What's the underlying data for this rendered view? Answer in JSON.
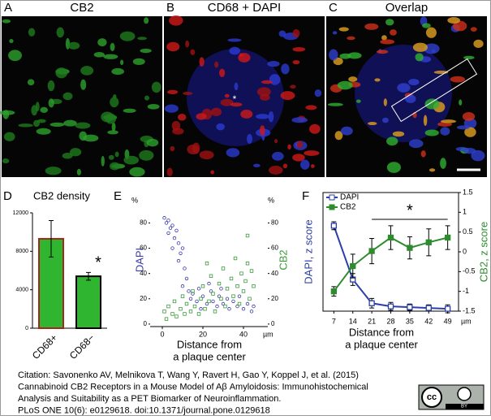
{
  "panels": [
    {
      "letter": "A",
      "title": "CB2"
    },
    {
      "letter": "B",
      "title": "CD68 + DAPI"
    },
    {
      "letter": "C",
      "title": "Overlap"
    }
  ],
  "asterisk_label": "*",
  "chart_data": [
    {
      "type": "bar",
      "letter": "D",
      "title": "CB2 density",
      "categories": [
        "CD68+",
        "CD68−"
      ],
      "values": [
        9300,
        5400
      ],
      "errors": [
        1900,
        400
      ],
      "colors": [
        "#2fb52f",
        "#2fb52f"
      ],
      "edge_colors": [
        "#a3281c",
        "#000000"
      ],
      "ylim": [
        0,
        12000
      ],
      "yticks": [
        0,
        4000,
        8000,
        12000
      ],
      "annotation": "*"
    },
    {
      "type": "scatter",
      "letter": "E",
      "ylabel": "DAPI",
      "y2label": "CB2",
      "yunit": "%",
      "y2unit": "%",
      "xunit": "µm",
      "xlabel": [
        "Distance from",
        "a plaque center"
      ],
      "xlim": [
        -6,
        52
      ],
      "xticks": [
        0,
        20,
        40
      ],
      "ylim": [
        -2,
        88
      ],
      "yticks": [
        0,
        20,
        40,
        60,
        80
      ],
      "y2lim": [
        -2,
        88
      ],
      "y2ticks": [
        0,
        20,
        40,
        60,
        80
      ],
      "series": [
        {
          "name": "DAPI",
          "color": "#3a3aa8",
          "x": [
            1,
            2,
            3,
            4,
            3,
            5,
            6,
            7,
            5,
            8,
            9,
            10,
            8,
            11,
            12,
            10,
            13,
            14,
            15,
            17,
            18,
            20,
            22,
            24,
            25,
            27,
            28,
            30,
            32,
            33,
            35,
            37,
            38,
            40,
            42,
            44,
            45,
            19,
            23,
            29
          ],
          "values": [
            84,
            80,
            82,
            76,
            72,
            78,
            68,
            74,
            60,
            64,
            56,
            60,
            50,
            44,
            36,
            30,
            26,
            20,
            24,
            18,
            28,
            22,
            16,
            26,
            18,
            14,
            22,
            16,
            20,
            12,
            18,
            14,
            22,
            12,
            16,
            10,
            14,
            12,
            32,
            28
          ]
        },
        {
          "name": "CB2",
          "color": "#3a9a3a",
          "axis": "y2",
          "x": [
            1,
            2,
            3,
            5,
            6,
            7,
            9,
            10,
            11,
            12,
            14,
            15,
            16,
            18,
            19,
            20,
            21,
            23,
            24,
            25,
            26,
            28,
            29,
            30,
            31,
            32,
            34,
            35,
            36,
            37,
            38,
            39,
            40,
            41,
            42,
            43,
            44,
            45,
            42,
            22
          ],
          "values": [
            10,
            4,
            14,
            8,
            18,
            6,
            12,
            22,
            8,
            16,
            10,
            26,
            14,
            8,
            20,
            30,
            12,
            18,
            38,
            24,
            10,
            32,
            20,
            44,
            14,
            28,
            36,
            22,
            52,
            30,
            16,
            40,
            26,
            34,
            48,
            20,
            42,
            30,
            70,
            48
          ]
        }
      ]
    },
    {
      "type": "line",
      "letter": "F",
      "ylabel": "DAPI, z score",
      "y2label": "CB2, z score",
      "xunit": "µm",
      "xlabel": [
        "Distance from",
        "a plaque center"
      ],
      "x": [
        7,
        14,
        21,
        28,
        35,
        42,
        49
      ],
      "xlim": [
        3,
        53
      ],
      "xticks": [
        7,
        14,
        21,
        28,
        35,
        42,
        49
      ],
      "ylim": [
        -1.5,
        1.5
      ],
      "y2lim": [
        -1.5,
        1.5
      ],
      "y2ticks": [
        1.5,
        1,
        0.5,
        0,
        -0.5,
        -1,
        -1.5
      ],
      "annotation": "*",
      "annotation_span": [
        21,
        49
      ],
      "legend": "upper left",
      "series": [
        {
          "name": "DAPI",
          "color": "#2b3fa8",
          "values": [
            0.66,
            -0.7,
            -1.3,
            -1.38,
            -1.4,
            -1.42,
            -1.44
          ],
          "errors": [
            0.1,
            0.15,
            0.12,
            0.1,
            0.08,
            0.08,
            0.1
          ]
        },
        {
          "name": "CB2",
          "color": "#2e8b2e",
          "axis": "y2",
          "values": [
            -1.0,
            -0.36,
            0.02,
            0.36,
            0.1,
            0.24,
            0.36
          ],
          "errors": [
            0.12,
            0.3,
            0.32,
            0.3,
            0.28,
            0.34,
            0.3
          ]
        }
      ]
    }
  ],
  "citation": [
    "Citation: Savonenko AV, Melnikova T, Wang Y, Ravert H, Gao Y, Koppel J, et al. (2015)",
    "Cannabinoid CB2 Receptors in a Mouse Model of Aβ Amyloidosis: Immunohistochemical",
    "Analysis and Suitability as a PET Biomarker of Neuroinflammation.",
    "PLoS ONE 10(6): e0129618. doi:10.1371/journal.pone.0129618"
  ],
  "license": {
    "cc": "cc",
    "by": "BY"
  }
}
